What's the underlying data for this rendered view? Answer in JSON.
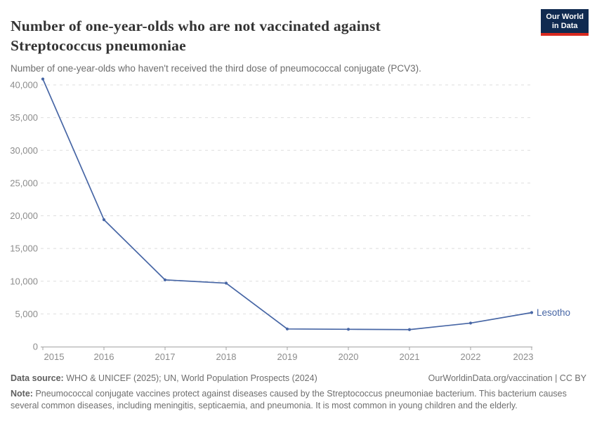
{
  "header": {
    "title": "Number of one-year-olds who are not vaccinated against Streptococcus pneumoniae",
    "subtitle": "Number of one-year-olds who haven't received the third dose of pneumococcal conjugate (PCV3).",
    "logo": {
      "line1": "Our World",
      "line2": "in Data"
    }
  },
  "chart_data": {
    "type": "line",
    "title": "Number of one-year-olds who are not vaccinated against Streptococcus pneumoniae",
    "xlabel": "",
    "ylabel": "",
    "x": [
      2015,
      2016,
      2017,
      2018,
      2019,
      2020,
      2021,
      2022,
      2023
    ],
    "x_tick_labels": [
      "2015",
      "2016",
      "2017",
      "2018",
      "2019",
      "2020",
      "2021",
      "2022",
      "2023"
    ],
    "series": [
      {
        "name": "Lesotho",
        "values": [
          40900,
          19400,
          10200,
          9700,
          2700,
          2650,
          2600,
          3600,
          5200
        ]
      }
    ],
    "ylim": [
      0,
      40000
    ],
    "y_tick_interval": 5000,
    "y_tick_labels": [
      "0",
      "5,000",
      "10,000",
      "15,000",
      "20,000",
      "25,000",
      "30,000",
      "35,000",
      "40,000"
    ],
    "grid": "horizontal dashed gridlines, on",
    "legend_position": "entity label at right end of line"
  },
  "footer": {
    "source_label": "Data source:",
    "source_text": "WHO & UNICEF (2025); UN, World Population Prospects (2024)",
    "attribution_url": "OurWorldinData.org/vaccination",
    "separator": " | ",
    "license": "CC BY",
    "note_label": "Note:",
    "note_text": "Pneumococcal conjugate vaccines protect against diseases caused by the Streptococcus pneumoniae bacterium. This bacterium causes several common diseases, including meningitis, septicaemia, and pneumonia. It is most common in young children and the elderly."
  },
  "colors": {
    "line": "#4766a5",
    "entity_label": "#4766a5",
    "grid": "#dedede",
    "axis": "#a3a3a3",
    "tick_text": "#8c8c8c",
    "title_text": "#333333",
    "subtitle_text": "#6d6d6d",
    "footer_text": "#6e6e6e",
    "logo_bg": "#102a50",
    "logo_red": "#d8291f"
  }
}
